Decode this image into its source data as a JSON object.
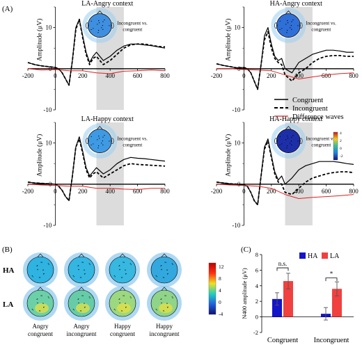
{
  "panel_labels": {
    "a": "(A)",
    "b": "(B)",
    "c": "(C)"
  },
  "erp": {
    "ylabel": "Amplitude (μV)",
    "xticks": [
      "-200",
      "0",
      "200",
      "400",
      "600",
      "800"
    ],
    "yticks": [
      "10",
      "0",
      "-10"
    ],
    "xlim": [
      -200,
      800
    ],
    "ylim": [
      -10,
      15
    ],
    "shaded_window": [
      300,
      500
    ],
    "topo_caption": "Incongruent vs. congruent",
    "legend": {
      "congruent": "Congruent",
      "incongruent": "Incongruent",
      "difference": "Difference waves"
    },
    "colorbar": {
      "max": "4",
      "ticks": [
        "4",
        "2",
        "0",
        "-2"
      ]
    },
    "panels": [
      {
        "title": "LA-Angry context",
        "topo_color": "#3e8fe0"
      },
      {
        "title": "HA-Angry context",
        "topo_color": "#2f6fd8"
      },
      {
        "title": "LA-Happy context",
        "topo_color": "#3f9ae4"
      },
      {
        "title": "HA-Happy context",
        "topo_color": "#1d2fa8"
      }
    ]
  },
  "topo_grid": {
    "row_labels": [
      "HA",
      "LA"
    ],
    "col_labels": [
      [
        "Angry",
        "congruent"
      ],
      [
        "Angry",
        "incongruent"
      ],
      [
        "Happy",
        "congruent"
      ],
      [
        "Happy",
        "incongruent"
      ]
    ],
    "colorbar_ticks": [
      "12",
      "8",
      "4",
      "0",
      "-4"
    ],
    "colors": {
      "HA": [
        "#2fb3e0",
        "#33b6e2",
        "#36b8e0",
        "#32a8de"
      ],
      "LA": [
        "#6bd0a8",
        "#66cca8",
        "#9bd880",
        "#8fd488"
      ]
    }
  },
  "chart_data": [
    {
      "type": "line",
      "title": "LA-Angry context",
      "xlabel": "",
      "ylabel": "Amplitude (μV)",
      "xlim": [
        -200,
        800
      ],
      "ylim": [
        -10,
        15
      ],
      "series": [
        {
          "name": "Congruent",
          "x": [
            -200,
            -150,
            -100,
            -50,
            0,
            25,
            50,
            75,
            100,
            125,
            150,
            175,
            200,
            225,
            250,
            275,
            300,
            350,
            400,
            450,
            500,
            550,
            600,
            650,
            700,
            750,
            800
          ],
          "y": [
            1.5,
            1,
            0.7,
            0.5,
            0.3,
            0,
            -1,
            -2.5,
            -4,
            2,
            10,
            12,
            8,
            4,
            1.5,
            3,
            4,
            2,
            3,
            4.5,
            5.5,
            6,
            6,
            5.8,
            5.6,
            5.3,
            5
          ]
        },
        {
          "name": "Incongruent",
          "x": [
            -200,
            -150,
            -100,
            -50,
            0,
            25,
            50,
            75,
            100,
            125,
            150,
            175,
            200,
            225,
            250,
            275,
            300,
            350,
            400,
            450,
            500,
            550,
            600,
            650,
            700,
            750,
            800
          ],
          "y": [
            1.5,
            1,
            0.7,
            0.5,
            0.3,
            0,
            -1,
            -2.5,
            -4,
            2,
            9.5,
            12,
            7.5,
            3.5,
            1,
            2.5,
            3,
            1,
            2,
            3.5,
            5,
            5.8,
            6,
            6,
            5.7,
            5.4,
            5.3
          ]
        },
        {
          "name": "Difference waves",
          "x": [
            -200,
            -100,
            0,
            100,
            200,
            300,
            400,
            500,
            600,
            700,
            800
          ],
          "y": [
            0,
            -0.3,
            -0.2,
            -0.5,
            -0.5,
            -1,
            -1.2,
            -0.6,
            -0.5,
            -0.3,
            -0.5
          ]
        }
      ]
    },
    {
      "type": "line",
      "title": "HA-Angry context",
      "xlabel": "",
      "ylabel": "Amplitude (μV)",
      "xlim": [
        -200,
        800
      ],
      "ylim": [
        -10,
        15
      ],
      "series": [
        {
          "name": "Congruent",
          "x": [
            -200,
            -150,
            -100,
            -50,
            0,
            25,
            50,
            75,
            100,
            125,
            150,
            175,
            200,
            225,
            250,
            275,
            300,
            350,
            400,
            450,
            500,
            550,
            600,
            650,
            700,
            750,
            800
          ],
          "y": [
            1.2,
            0.8,
            0.5,
            0.2,
            0.3,
            0,
            -1,
            -3,
            -5,
            1,
            8,
            10,
            6,
            3,
            2,
            2.5,
            0,
            -1,
            1.5,
            2.5,
            3.5,
            4,
            4.5,
            4.5,
            4.3,
            4,
            4
          ]
        },
        {
          "name": "Incongruent",
          "x": [
            -200,
            -150,
            -100,
            -50,
            0,
            25,
            50,
            75,
            100,
            125,
            150,
            175,
            200,
            225,
            250,
            275,
            300,
            350,
            400,
            450,
            500,
            550,
            600,
            650,
            700,
            750,
            800
          ],
          "y": [
            1.2,
            0.8,
            0.5,
            0.2,
            0.3,
            0,
            -1,
            -3,
            -5,
            1,
            7,
            9,
            5,
            2.5,
            1.5,
            1,
            -1.5,
            -3,
            -1,
            0,
            1.5,
            2.5,
            3,
            3.2,
            3.2,
            3,
            3
          ]
        },
        {
          "name": "Difference waves",
          "x": [
            -200,
            -100,
            0,
            100,
            200,
            300,
            400,
            500,
            600,
            700,
            800
          ],
          "y": [
            0,
            0,
            -0.2,
            -0.3,
            -0.5,
            -1.5,
            -2.5,
            -2,
            -1.5,
            -1.2,
            -1
          ]
        }
      ]
    },
    {
      "type": "line",
      "title": "LA-Happy context",
      "xlabel": "",
      "ylabel": "Amplitude (μV)",
      "xlim": [
        -200,
        800
      ],
      "ylim": [
        -10,
        15
      ],
      "series": [
        {
          "name": "Congruent",
          "x": [
            -200,
            -150,
            -100,
            -50,
            0,
            25,
            50,
            75,
            100,
            125,
            150,
            175,
            200,
            225,
            250,
            275,
            300,
            350,
            400,
            450,
            500,
            550,
            600,
            650,
            700,
            750,
            800
          ],
          "y": [
            0.5,
            0.3,
            0.2,
            0.1,
            0,
            -0.5,
            -1.5,
            -3,
            -4,
            2,
            9,
            11.5,
            8,
            4,
            2,
            3,
            4,
            2.5,
            3.5,
            5,
            6,
            6.5,
            6.3,
            6.2,
            6,
            5.8,
            5.6
          ]
        },
        {
          "name": "Incongruent",
          "x": [
            -200,
            -150,
            -100,
            -50,
            0,
            25,
            50,
            75,
            100,
            125,
            150,
            175,
            200,
            225,
            250,
            275,
            300,
            350,
            400,
            450,
            500,
            550,
            600,
            650,
            700,
            750,
            800
          ],
          "y": [
            0.5,
            0.3,
            0.2,
            0.1,
            0,
            -0.5,
            -1.5,
            -3,
            -4,
            2,
            9,
            11,
            7.5,
            3.5,
            1.5,
            2.5,
            3,
            1.5,
            2.5,
            3.5,
            4.5,
            5,
            4.8,
            4.7,
            4.6,
            4.5,
            4.4
          ]
        },
        {
          "name": "Difference waves",
          "x": [
            -200,
            -100,
            0,
            100,
            200,
            300,
            400,
            500,
            600,
            700,
            800
          ],
          "y": [
            0,
            -0.2,
            -0.3,
            -0.5,
            -0.5,
            -1,
            -1,
            -1.2,
            -1.3,
            -1,
            -1
          ]
        }
      ]
    },
    {
      "type": "line",
      "title": "HA-Happy context",
      "xlabel": "",
      "ylabel": "Amplitude (μV)",
      "xlim": [
        -200,
        800
      ],
      "ylim": [
        -10,
        15
      ],
      "series": [
        {
          "name": "Congruent",
          "x": [
            -200,
            -150,
            -100,
            -50,
            0,
            25,
            50,
            75,
            100,
            125,
            150,
            175,
            200,
            225,
            250,
            275,
            300,
            350,
            400,
            450,
            500,
            550,
            600,
            650,
            700,
            750,
            800
          ],
          "y": [
            0.5,
            0.3,
            0.1,
            0,
            -0.2,
            -0.5,
            -2,
            -4,
            -5,
            2,
            9,
            11,
            7,
            3,
            1,
            2,
            0,
            1.5,
            3.5,
            4.5,
            5,
            5.5,
            5.5,
            5.5,
            5.3,
            5,
            4.8
          ]
        },
        {
          "name": "Incongruent",
          "x": [
            -200,
            -150,
            -100,
            -50,
            0,
            25,
            50,
            75,
            100,
            125,
            150,
            175,
            200,
            225,
            250,
            275,
            300,
            350,
            400,
            450,
            500,
            550,
            600,
            650,
            700,
            750,
            800
          ],
          "y": [
            0.5,
            0.3,
            0.1,
            0,
            -0.2,
            -0.5,
            -2,
            -4,
            -5,
            2,
            8.5,
            10.5,
            6.5,
            2.5,
            0.5,
            0,
            -2,
            -2.5,
            -1,
            0.5,
            1.5,
            2,
            2.5,
            2.8,
            3,
            3,
            2.8
          ]
        },
        {
          "name": "Difference waves",
          "x": [
            -200,
            -100,
            0,
            100,
            200,
            300,
            400,
            500,
            600,
            700,
            800
          ],
          "y": [
            0,
            -0.2,
            -0.3,
            -0.5,
            -1,
            -2.5,
            -3.5,
            -3.2,
            -3,
            -2.8,
            -2.5
          ]
        }
      ]
    },
    {
      "type": "bar",
      "title": "",
      "xlabel": "",
      "ylabel": "N400 amplitude (μV)",
      "categories": [
        "Congruent",
        "Incongruent"
      ],
      "ylim": [
        -2,
        8
      ],
      "yticks": [
        "-2",
        "0",
        "2",
        "4",
        "6",
        "8"
      ],
      "series": [
        {
          "name": "HA",
          "color": "#1414c8",
          "values": [
            2.3,
            0.4
          ],
          "errors": [
            0.8,
            0.8
          ]
        },
        {
          "name": "LA",
          "color": "#f04040",
          "values": [
            4.6,
            3.6
          ],
          "errors": [
            1.0,
            0.9
          ]
        }
      ],
      "annotations": [
        "n.s.",
        "*"
      ]
    }
  ]
}
